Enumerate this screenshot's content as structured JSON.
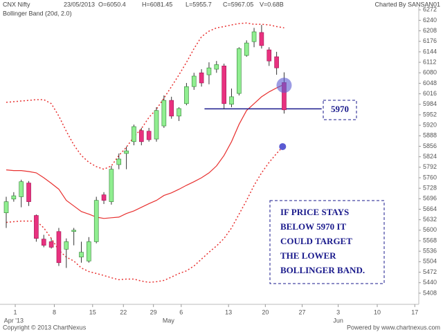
{
  "chart_data": {
    "type": "candlestick",
    "instrument": "CNX Nifty",
    "date": "23/05/2013",
    "ohlcv": [
      "O=6050.4",
      "H=6081.45",
      "L=5955.7",
      "C=5967.05",
      "V=0.68B"
    ],
    "charted_by": "Charted By SANSAN01",
    "indicator": "Bollinger Band (20d, 2.0)",
    "indicator_color": "#e8302f",
    "x": [
      0,
      1,
      2,
      3,
      4,
      5,
      6,
      7,
      8,
      9,
      10,
      11,
      12,
      13,
      14,
      15,
      16,
      17,
      18,
      19,
      20,
      21,
      22,
      23,
      24,
      25,
      26,
      27,
      28,
      29,
      30,
      31,
      32,
      33,
      34,
      35,
      36,
      37
    ],
    "candles": {
      "open": [
        5653,
        5695,
        5702,
        5744,
        5645,
        5573,
        5565,
        5596,
        5542,
        5596,
        5518,
        5506,
        5565,
        5708,
        5687,
        5800,
        5834,
        5870,
        5904,
        5902,
        5878,
        5918,
        5996,
        5948,
        5986,
        6038,
        6080,
        6074,
        6091,
        6101,
        5984,
        6017,
        6133,
        6175,
        6203,
        6150,
        6129,
        6050.4
      ],
      "high": [
        5702,
        5716,
        5754,
        5750,
        5648,
        5586,
        5575,
        5607,
        5575,
        5607,
        5565,
        5579,
        5702,
        5716,
        5796,
        5834,
        5855,
        5922,
        5912,
        5912,
        5975,
        6011,
        6007,
        5975,
        6049,
        6080,
        6091,
        6112,
        6116,
        6108,
        6032,
        6158,
        6179,
        6217,
        6226,
        6158,
        6144,
        6081.45
      ],
      "low": [
        5607,
        5687,
        5670,
        5674,
        5565,
        5548,
        5544,
        5491,
        5485,
        5554,
        5501,
        5501,
        5560,
        5680,
        5678,
        5786,
        5786,
        5859,
        5859,
        5870,
        5870,
        5912,
        5940,
        5933,
        5981,
        6028,
        6038,
        6045,
        6080,
        5969,
        5975,
        6011,
        6129,
        6158,
        6154,
        6101,
        6074,
        5955.7
      ],
      "close": [
        5687,
        5705,
        5748,
        5687,
        5575,
        5554,
        5548,
        5501,
        5565,
        5600,
        5533,
        5565,
        5691,
        5691,
        5786,
        5817,
        5842,
        5916,
        5870,
        5876,
        5965,
        5996,
        5948,
        5971,
        6038,
        6070,
        6049,
        6095,
        6105,
        5986,
        6007,
        6154,
        6171,
        6205,
        6163,
        6116,
        6095,
        5967.05
      ],
      "up_color": "#90ee90",
      "down_color": "#e8317f"
    },
    "bands": [
      {
        "color": "#e8302f",
        "style": "dotted",
        "values": [
          5990,
          5992,
          5994,
          5996,
          5998,
          5998,
          5986,
          5948,
          5902,
          5860,
          5828,
          5807,
          5794,
          5786,
          5796,
          5828,
          5853,
          5885,
          5910,
          5944,
          5969,
          6003,
          6038,
          6074,
          6112,
          6154,
          6190,
          6207,
          6217,
          6221,
          6226,
          6230,
          6232,
          6228,
          6228,
          6226,
          6221,
          6217
        ]
      },
      {
        "color": "#e8302f",
        "style": "solid",
        "values": [
          5784,
          5782,
          5782,
          5779,
          5775,
          5760,
          5743,
          5725,
          5691,
          5674,
          5657,
          5649,
          5640,
          5636,
          5638,
          5640,
          5651,
          5659,
          5670,
          5681,
          5691,
          5706,
          5714,
          5725,
          5737,
          5748,
          5760,
          5775,
          5796,
          5828,
          5870,
          5923,
          5965,
          5986,
          6007,
          6022,
          6034,
          6045
        ]
      },
      {
        "color": "#e8302f",
        "style": "dotted",
        "values": [
          5624,
          5626,
          5628,
          5628,
          5628,
          5607,
          5575,
          5539,
          5518,
          5506,
          5485,
          5474,
          5468,
          5462,
          5455,
          5449,
          5451,
          5451,
          5445,
          5441,
          5443,
          5447,
          5457,
          5468,
          5476,
          5491,
          5512,
          5533,
          5552,
          5575,
          5607,
          5649,
          5691,
          5737,
          5775,
          5807,
          5834,
          5859
        ]
      }
    ],
    "level": 5970,
    "level_xrange": [
      26.4,
      42.0
    ],
    "level_color": "#1a1a8c",
    "highlights": [
      {
        "x": 37,
        "y": 6042
      },
      {
        "x": 36.8,
        "y": 5855
      }
    ],
    "note": [
      "IF PRICE STAYS",
      "BELOW 5970 IT",
      "COULD TARGET",
      "THE LOWER",
      "BOLLINGER BAND."
    ],
    "xlim": [
      -0.83,
      54.93
    ],
    "ylim": [
      5374,
      6302
    ],
    "yticks": [
      5408,
      5440,
      5472,
      5504,
      5536,
      5568,
      5600,
      5632,
      5664,
      5696,
      5728,
      5760,
      5792,
      5824,
      5856,
      5888,
      5920,
      5952,
      5984,
      6016,
      6048,
      6080,
      6112,
      6144,
      6176,
      6208,
      6240,
      6272
    ],
    "xticks": [
      {
        "value": 1.2,
        "label": "1"
      },
      {
        "value": 6.4,
        "label": "8"
      },
      {
        "value": 11.5,
        "label": "15"
      },
      {
        "value": 15.6,
        "label": "22"
      },
      {
        "value": 19.6,
        "label": "29"
      },
      {
        "value": 23.3,
        "label": "6"
      },
      {
        "value": 29.6,
        "label": "13"
      },
      {
        "value": 34.5,
        "label": "20"
      },
      {
        "value": 39.4,
        "label": "27"
      },
      {
        "value": 44.2,
        "label": "3"
      },
      {
        "value": 49.4,
        "label": "10"
      },
      {
        "value": 54.4,
        "label": "17"
      }
    ],
    "month_labels": [
      {
        "value": 1.0,
        "label": "Apr '13"
      },
      {
        "value": 21.6,
        "label": "May"
      },
      {
        "value": 44.2,
        "label": "Jun"
      }
    ],
    "copyright": "Copyright © 2013 ChartNexus",
    "powered_by": "Powered by www.chartnexus.com"
  }
}
